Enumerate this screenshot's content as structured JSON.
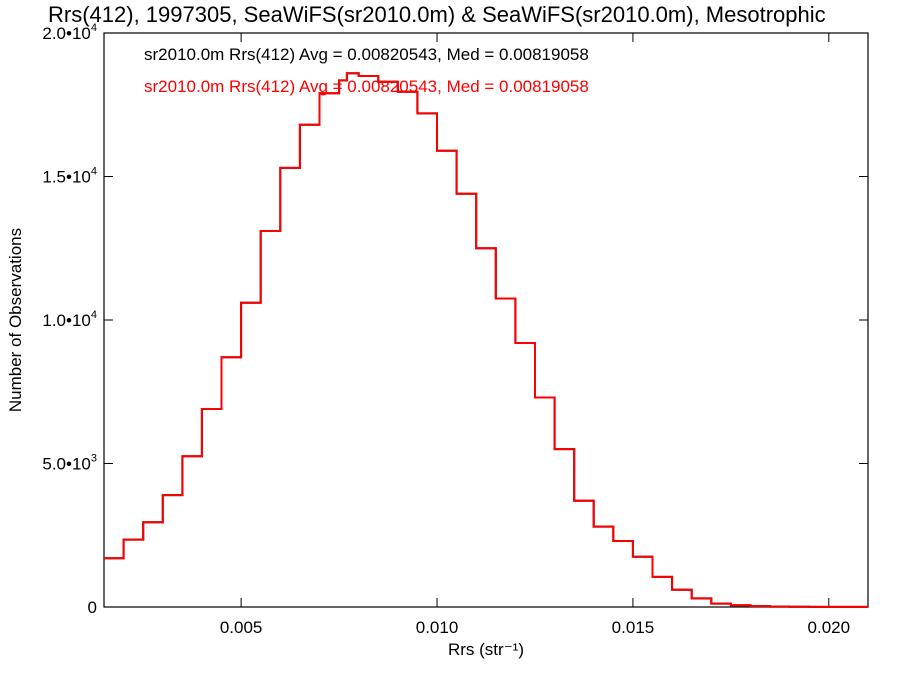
{
  "chart_data": {
    "type": "line",
    "title": "Rrs(412), 1997305, SeaWiFS(sr2010.0m) & SeaWiFS(sr2010.0m), Mesotrophic",
    "xlabel": "Rrs (str⁻¹)",
    "ylabel": "Number of Observations",
    "xlim": [
      0.0015,
      0.021
    ],
    "ylim": [
      0,
      20000
    ],
    "x_ticks": [
      {
        "value": 0.005,
        "label": "0.005"
      },
      {
        "value": 0.01,
        "label": "0.010"
      },
      {
        "value": 0.015,
        "label": "0.015"
      },
      {
        "value": 0.02,
        "label": "0.020"
      }
    ],
    "y_ticks": [
      {
        "value": 0,
        "mant": "0",
        "exp": ""
      },
      {
        "value": 5000,
        "mant": "5.0•10",
        "exp": "3"
      },
      {
        "value": 10000,
        "mant": "1.0•10",
        "exp": "4"
      },
      {
        "value": 15000,
        "mant": "1.5•10",
        "exp": "4"
      },
      {
        "value": 20000,
        "mant": "2.0•10",
        "exp": "4"
      }
    ],
    "grid": false,
    "annotations": [
      {
        "text": "sr2010.0m Rrs(412) Avg = 0.00820543, Med = 0.00819058",
        "color": "#000000"
      },
      {
        "text": "sr2010.0m Rrs(412) Avg = 0.00820543, Med = 0.00819058",
        "color": "#ff0000"
      }
    ],
    "series": [
      {
        "color": "#000000",
        "step": true,
        "x": [
          0.0015,
          0.002,
          0.0025,
          0.003,
          0.0035,
          0.004,
          0.0045,
          0.005,
          0.0055,
          0.006,
          0.0065,
          0.007,
          0.0075,
          0.0077,
          0.008,
          0.0085,
          0.009,
          0.0095,
          0.01,
          0.0105,
          0.011,
          0.0115,
          0.012,
          0.0125,
          0.013,
          0.0135,
          0.014,
          0.0145,
          0.015,
          0.0155,
          0.016,
          0.0165,
          0.017,
          0.0175,
          0.018,
          0.0185,
          0.019,
          0.0195,
          0.02,
          0.021
        ],
        "y": [
          1700,
          2350,
          2950,
          3900,
          5250,
          6900,
          8700,
          10600,
          13100,
          15300,
          16800,
          17900,
          18350,
          18600,
          18500,
          18300,
          17950,
          17200,
          15900,
          14400,
          12500,
          10750,
          9200,
          7300,
          5500,
          3700,
          2800,
          2300,
          1750,
          1050,
          600,
          300,
          120,
          60,
          30,
          15,
          10,
          5,
          3,
          0
        ]
      },
      {
        "color": "#ff0000",
        "step": true,
        "x": [
          0.0015,
          0.002,
          0.0025,
          0.003,
          0.0035,
          0.004,
          0.0045,
          0.005,
          0.0055,
          0.006,
          0.0065,
          0.007,
          0.0075,
          0.0077,
          0.008,
          0.0085,
          0.009,
          0.0095,
          0.01,
          0.0105,
          0.011,
          0.0115,
          0.012,
          0.0125,
          0.013,
          0.0135,
          0.014,
          0.0145,
          0.015,
          0.0155,
          0.016,
          0.0165,
          0.017,
          0.0175,
          0.018,
          0.0185,
          0.019,
          0.0195,
          0.02,
          0.021
        ],
        "y": [
          1700,
          2350,
          2950,
          3900,
          5250,
          6900,
          8700,
          10600,
          13100,
          15300,
          16800,
          17900,
          18350,
          18600,
          18500,
          18300,
          17950,
          17200,
          15900,
          14400,
          12500,
          10750,
          9200,
          7300,
          5500,
          3700,
          2800,
          2300,
          1750,
          1050,
          600,
          300,
          120,
          60,
          30,
          15,
          10,
          5,
          3,
          0
        ]
      }
    ]
  }
}
